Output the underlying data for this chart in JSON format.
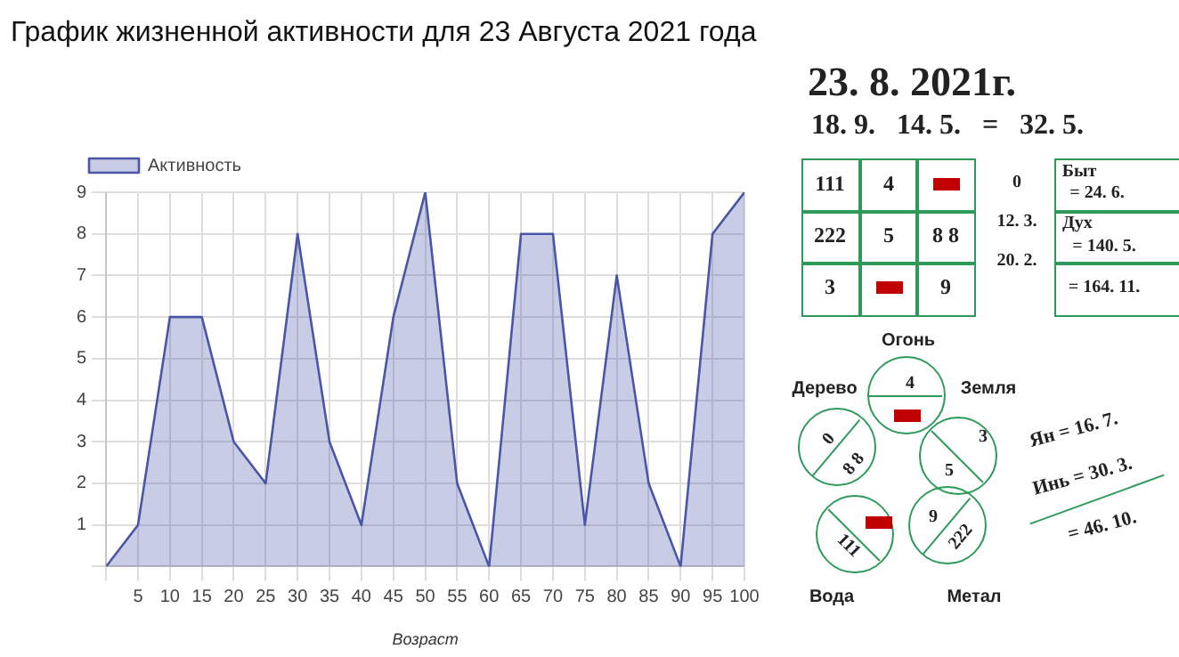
{
  "chart_data": [
    {
      "type": "area",
      "title": "График жизненной активности для 23 Августа 2021 года",
      "xlabel": "Возраст",
      "x": [
        0,
        5,
        10,
        15,
        20,
        25,
        30,
        35,
        40,
        45,
        50,
        55,
        60,
        65,
        70,
        75,
        80,
        85,
        90,
        95,
        100
      ],
      "series": [
        {
          "name": "Активность",
          "color": "#4a56a6",
          "values": [
            0,
            1,
            6,
            6,
            3,
            2,
            8,
            3,
            1,
            6,
            9,
            2,
            0,
            8,
            8,
            1,
            7,
            2,
            0,
            8,
            9
          ]
        }
      ],
      "xlim": [
        0,
        100
      ],
      "xticks": [
        {
          "value": 0,
          "label": null
        },
        5,
        10,
        15,
        20,
        25,
        30,
        35,
        40,
        45,
        50,
        55,
        60,
        65,
        70,
        75,
        80,
        85,
        90,
        95,
        100
      ],
      "ylim": [
        0,
        9
      ],
      "yticks": [
        {
          "value": 0,
          "label": null
        },
        1,
        2,
        3,
        4,
        5,
        6,
        7,
        8,
        9
      ],
      "grid": true,
      "legend": "top left"
    },
    {
      "type": "other",
      "annotations": [
        "23. 8. 2021г.",
        "18. 9.   14. 5.   =   32. 5.",
        "111",
        "4",
        "222",
        "5",
        "8 8",
        "3",
        "9",
        "0",
        "12. 3.",
        "20. 2.",
        "Быт",
        "= 24. 6.",
        "Дух",
        "= 140. 5.",
        "= 164. 11.",
        "Огонь",
        "Дерево",
        "Земля",
        "Вода",
        "Метал",
        "4",
        "0",
        "8 8",
        "3",
        "5",
        "9",
        "222",
        "111",
        "Ян = 16. 7.",
        "Инь = 30. 3.",
        "= 46. 10."
      ]
    }
  ]
}
